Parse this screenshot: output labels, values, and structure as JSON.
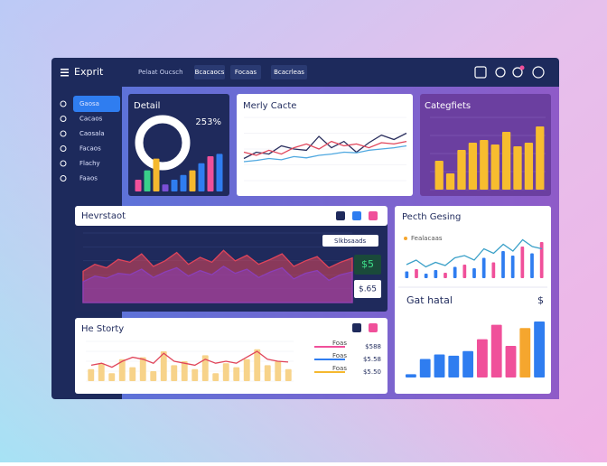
{
  "header": {
    "logo": "Exprit",
    "workspace": "Pelaat Oucsch",
    "tabs": [
      "Bcacaocs",
      "Focaas",
      "Bcacrleas"
    ]
  },
  "sidebar": {
    "items": [
      "Gaosa",
      "Cacaos",
      "Caosala",
      "Facaos",
      "Flachy",
      "Faaos"
    ]
  },
  "detail": {
    "title": "Detail",
    "stat": "253%",
    "ylim": [
      0,
      100
    ],
    "values": [
      25,
      45,
      70,
      15,
      25,
      35,
      45,
      60,
      75,
      80
    ],
    "colors": [
      "#f0509a",
      "#39d08a",
      "#f5b82e",
      "#7b4fd6",
      "#2f7df0",
      "#2f7df0",
      "#f5b82e",
      "#2f7df0",
      "#f0509a",
      "#2f7df0"
    ]
  },
  "merly": {
    "title": "Merly Cacte",
    "ylim": [
      0,
      100
    ],
    "series": [
      {
        "color": "#2b2f5e",
        "values": [
          35,
          45,
          42,
          55,
          50,
          48,
          70,
          52,
          62,
          45,
          60,
          72,
          65,
          75
        ]
      },
      {
        "color": "#e0455a",
        "values": [
          45,
          40,
          48,
          42,
          52,
          58,
          50,
          62,
          55,
          58,
          52,
          60,
          58,
          62
        ]
      },
      {
        "color": "#4fa8e0",
        "values": [
          30,
          32,
          35,
          33,
          38,
          36,
          40,
          42,
          45,
          44,
          48,
          50,
          52,
          55
        ]
      }
    ]
  },
  "categories": {
    "title": "Categfiets",
    "color": "#f7bd2f",
    "ylim": [
      0,
      80
    ],
    "values": [
      32,
      18,
      44,
      52,
      55,
      50,
      64,
      48,
      52,
      70
    ]
  },
  "hevr": {
    "title": "Hevrstaot",
    "badge": "Slkbsaads",
    "stat1": "$5",
    "stat2": "$.65",
    "ylim": [
      0,
      100
    ],
    "series": [
      {
        "color": "#e0455a",
        "values": [
          45,
          55,
          50,
          62,
          58,
          70,
          52,
          60,
          72,
          55,
          65,
          58,
          75,
          60,
          68,
          55,
          62,
          70,
          52,
          60,
          66,
          50,
          58,
          64
        ]
      },
      {
        "color": "#8b3fb8",
        "values": [
          30,
          38,
          35,
          42,
          40,
          48,
          36,
          44,
          50,
          38,
          46,
          40,
          52,
          42,
          48,
          36,
          44,
          50,
          34,
          42,
          46,
          32,
          40,
          44
        ]
      }
    ]
  },
  "pecth": {
    "title": "Pecth Gesing",
    "legend": "Fealacaas",
    "ylim": [
      0,
      100
    ],
    "values": [
      15,
      20,
      10,
      18,
      12,
      25,
      30,
      22,
      45,
      35,
      60,
      50,
      70,
      55,
      80
    ],
    "colors": [
      "#2f7df0",
      "#f0509a",
      "#2f7df0",
      "#2f7df0",
      "#f0509a",
      "#2f7df0",
      "#f0509a",
      "#2f7df0",
      "#2f7df0",
      "#f0509a",
      "#2f7df0",
      "#2f7df0",
      "#f0509a",
      "#2f7df0",
      "#f0509a"
    ],
    "line": {
      "color": "#3aa0c8",
      "values": [
        30,
        40,
        25,
        35,
        28,
        45,
        50,
        40,
        65,
        55,
        75,
        60,
        85,
        70,
        65
      ]
    }
  },
  "gat": {
    "title": "Gat hatal",
    "symbol": "$",
    "ylim": [
      0,
      100
    ],
    "values": [
      5,
      28,
      35,
      33,
      40,
      58,
      80,
      48,
      75,
      85
    ],
    "colors": [
      "#2f7df0",
      "#2f7df0",
      "#2f7df0",
      "#2f7df0",
      "#2f7df0",
      "#f0509a",
      "#f0509a",
      "#f0509a",
      "#f5a62e",
      "#2f7df0"
    ]
  },
  "story": {
    "title": "He Storty",
    "ylim": [
      0,
      100
    ],
    "color": "#f7d38a",
    "values": [
      30,
      45,
      20,
      55,
      35,
      60,
      25,
      75,
      40,
      50,
      30,
      65,
      20,
      45,
      35,
      55,
      80,
      40,
      50,
      30
    ],
    "line": {
      "color": "#e0455a",
      "values": [
        40,
        45,
        35,
        50,
        60,
        55,
        45,
        70,
        50,
        45,
        40,
        55,
        45,
        50,
        45,
        60,
        75,
        55,
        50,
        48
      ]
    },
    "rows": [
      {
        "label": "Foas",
        "value": "$588",
        "color": "#f0509a"
      },
      {
        "label": "Foas",
        "value": "$5.58",
        "color": "#2f7df0"
      },
      {
        "label": "Foas",
        "value": "$5.50",
        "color": "#f5b82e"
      }
    ]
  }
}
